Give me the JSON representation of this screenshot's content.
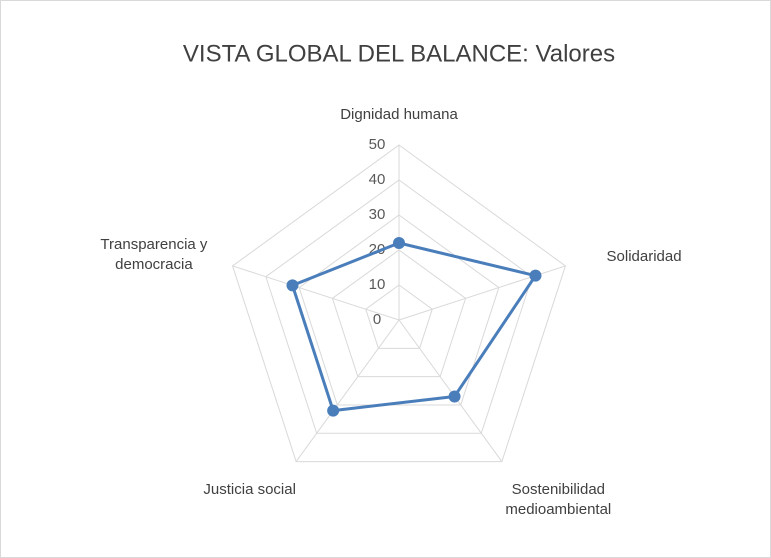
{
  "chart_data": {
    "type": "radar",
    "title": "VISTA GLOBAL DEL BALANCE: Valores",
    "categories": [
      "Dignidad humana",
      "Solidaridad",
      "Sostenibilidad medioambiental",
      "Justicia social",
      "Transparencia y democracia"
    ],
    "series": [
      {
        "name": "Valores",
        "color": "#4a7ebb",
        "values": [
          22,
          41,
          27,
          32,
          32
        ]
      }
    ],
    "ylim": [
      0,
      50
    ],
    "yticks": [
      0,
      10,
      20,
      30,
      40,
      50
    ],
    "grid": true
  }
}
